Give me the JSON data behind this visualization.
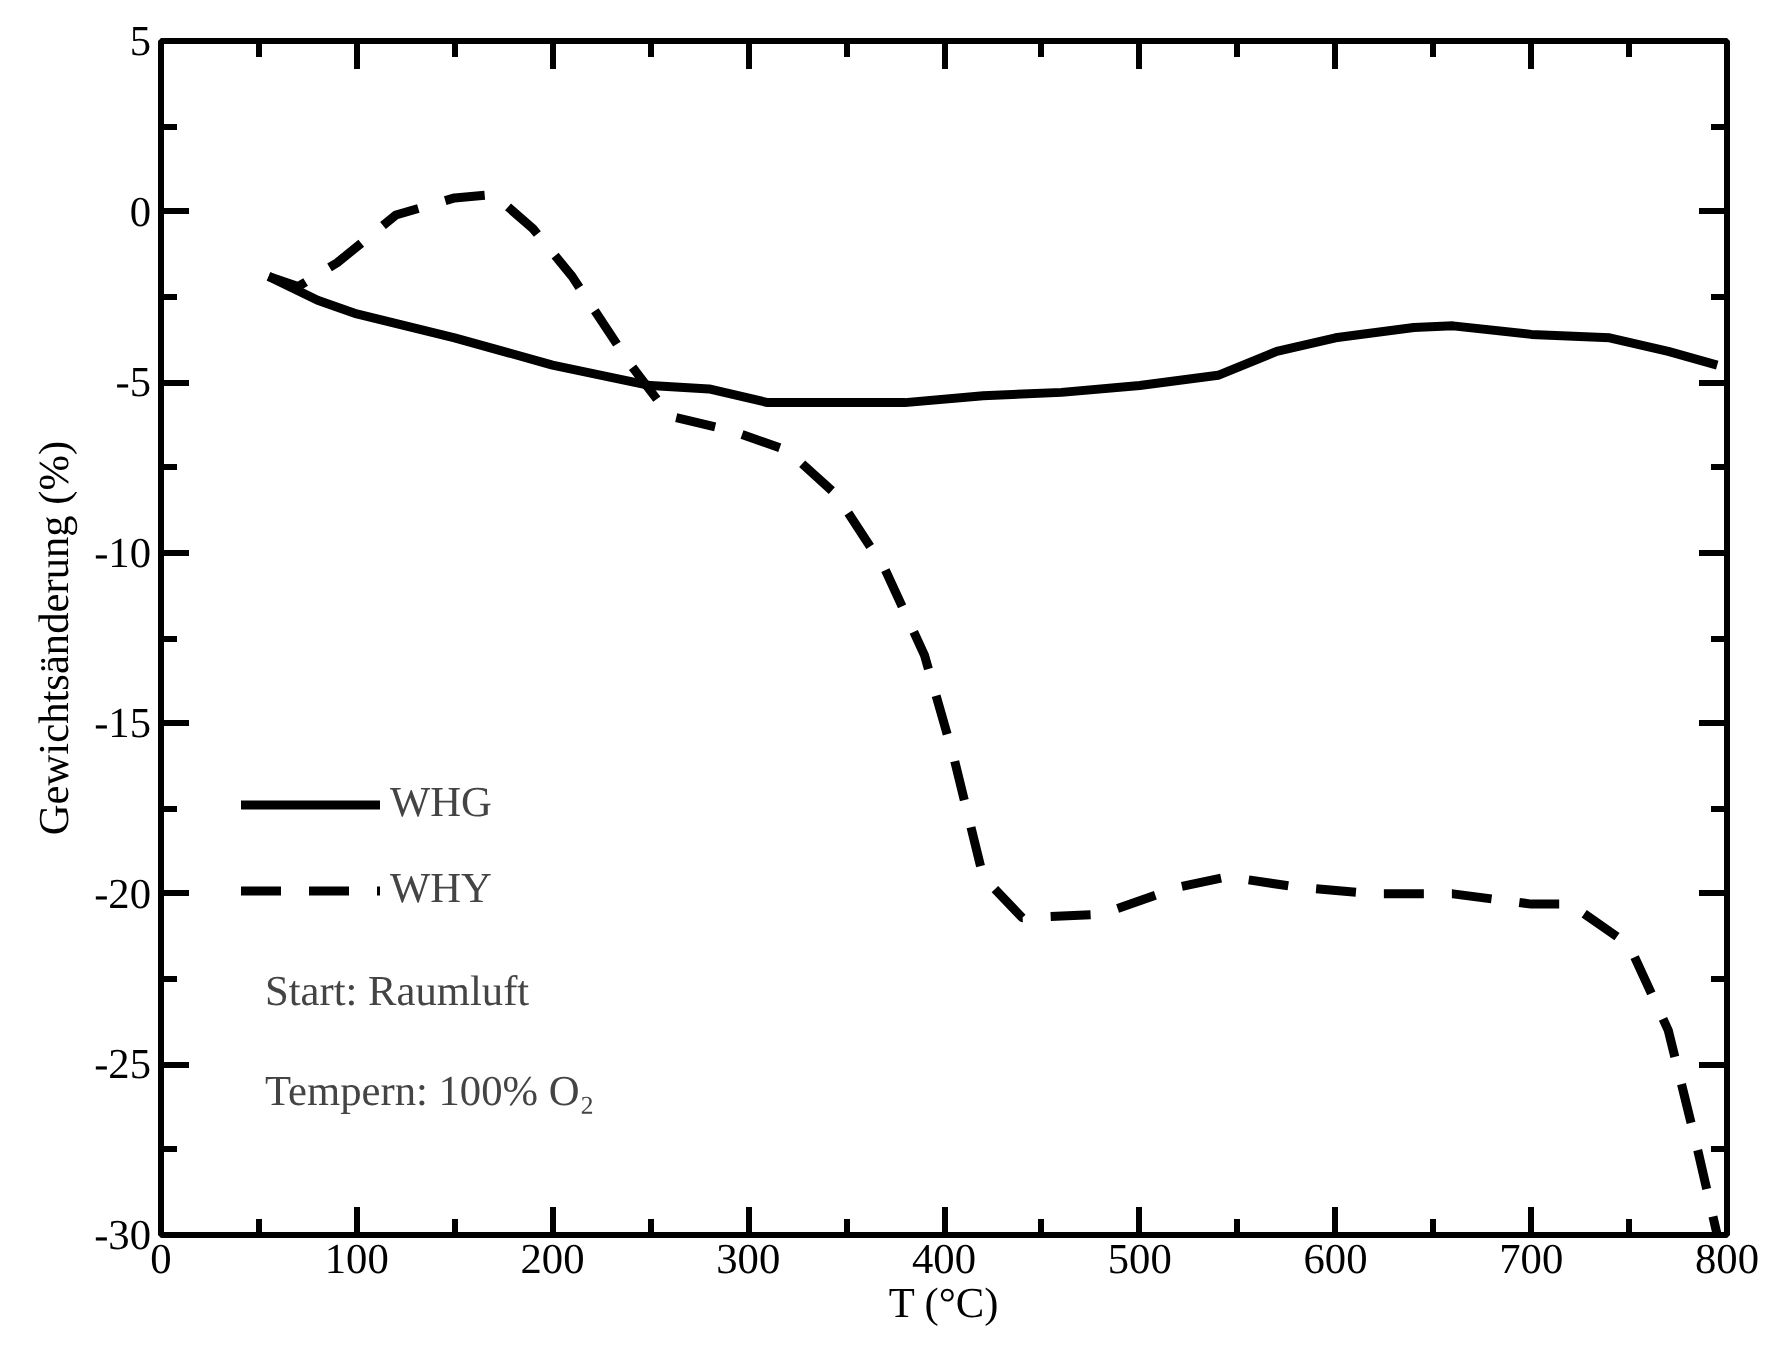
{
  "chart_data": {
    "type": "line",
    "xlabel": "T (°C)",
    "ylabel": "Gewichtsänderung (%)",
    "xlim": [
      0,
      800
    ],
    "ylim": [
      -30,
      5
    ],
    "xticks": [
      0,
      100,
      200,
      300,
      400,
      500,
      600,
      700,
      800
    ],
    "yticks": [
      -30,
      -25,
      -20,
      -15,
      -10,
      -5,
      0,
      5
    ],
    "grid": false,
    "legend": "left",
    "marker": "none",
    "series": [
      {
        "name": "WHG",
        "color": "#000000",
        "line_style": "solid",
        "x": [
          55,
          80,
          100,
          150,
          200,
          250,
          280,
          310,
          350,
          380,
          420,
          460,
          500,
          540,
          570,
          600,
          640,
          660,
          700,
          740,
          770,
          795
        ],
        "values": [
          -1.9,
          -2.6,
          -3.0,
          -3.7,
          -4.5,
          -5.1,
          -5.2,
          -5.6,
          -5.6,
          -5.6,
          -5.4,
          -5.3,
          -5.1,
          -4.8,
          -4.1,
          -3.7,
          -3.4,
          -3.35,
          -3.6,
          -3.7,
          -4.1,
          -4.5
        ]
      },
      {
        "name": "WHY",
        "color": "#000000",
        "line_style": "dashed",
        "x": [
          55,
          70,
          90,
          120,
          150,
          170,
          190,
          210,
          240,
          260,
          290,
          320,
          345,
          370,
          390,
          405,
          420,
          440,
          480,
          520,
          545,
          580,
          620,
          660,
          700,
          720,
          750,
          770,
          785,
          795
        ],
        "values": [
          -1.9,
          -2.2,
          -1.5,
          -0.1,
          0.4,
          0.5,
          -0.5,
          -1.9,
          -4.5,
          -6.0,
          -6.4,
          -7.0,
          -8.3,
          -10.5,
          -13.0,
          -16.0,
          -19.5,
          -20.7,
          -20.6,
          -19.8,
          -19.5,
          -19.8,
          -20.0,
          -20.0,
          -20.3,
          -20.3,
          -21.5,
          -24.0,
          -27.5,
          -30.0
        ]
      }
    ],
    "annotations": [
      "Start: Raumluft",
      "Tempern: 100% O₂"
    ]
  }
}
